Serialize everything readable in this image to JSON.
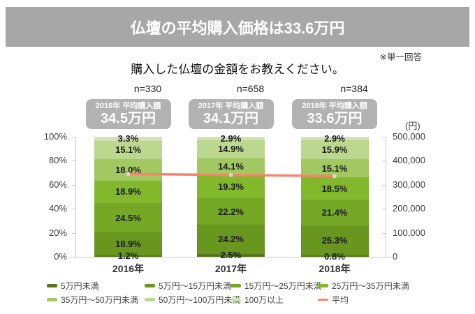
{
  "header": {
    "title": "仏壇の平均購入価格は33.6万円"
  },
  "note": "※単一回答",
  "question": "購入した仏壇の金額をお教えください。",
  "groups": [
    {
      "n_label": "n=330",
      "avg_title": "2016年 平均購入額",
      "avg_value": "34.5万円"
    },
    {
      "n_label": "n=658",
      "avg_title": "2017年 平均購入額",
      "avg_value": "34.1万円"
    },
    {
      "n_label": "n=384",
      "avg_title": "2018年 平均購入額",
      "avg_value": "33.6万円"
    }
  ],
  "chart_data": {
    "type": "bar",
    "subtype": "stacked-100pct-with-line",
    "title": "仏壇の平均購入価格は33.6万円",
    "categories": [
      "2016年",
      "2017年",
      "2018年"
    ],
    "n_values": [
      330,
      658,
      384
    ],
    "series": [
      {
        "name": "5万円未満",
        "color": "#55761a",
        "values": [
          1.2,
          2.5,
          0.8
        ]
      },
      {
        "name": "5万円〜15万円未満",
        "color": "#68961e",
        "values": [
          18.9,
          24.2,
          25.3
        ]
      },
      {
        "name": "15万円〜25万円未満",
        "color": "#74a825",
        "values": [
          24.5,
          22.2,
          21.4
        ]
      },
      {
        "name": "25万円〜35万円未満",
        "color": "#81b82c",
        "values": [
          18.9,
          19.3,
          18.5
        ]
      },
      {
        "name": "35万円〜50万円未満",
        "color": "#a2c961",
        "values": [
          18.0,
          14.1,
          15.1
        ]
      },
      {
        "name": "50万円〜100万円未満",
        "color": "#bcd78e",
        "values": [
          15.1,
          14.9,
          15.9
        ]
      },
      {
        "name": "100万以上",
        "color": "#d0e2b3",
        "values": [
          3.3,
          2.9,
          2.9
        ]
      }
    ],
    "line_series": {
      "name": "平均",
      "color": "#f5846b",
      "marker_color": "#d9d9d9",
      "values": [
        345000,
        341000,
        336000
      ],
      "value_labels": [
        "34.5万円",
        "34.1万円",
        "33.6万円"
      ]
    },
    "left_axis": {
      "ticks": [
        "0%",
        "20%",
        "40%",
        "60%",
        "80%",
        "100%"
      ],
      "min": 0,
      "max": 100
    },
    "right_axis": {
      "unit": "(円)",
      "ticks": [
        "0",
        "100,000",
        "200,000",
        "300,000",
        "400,000",
        "500,000"
      ],
      "min": 0,
      "max": 500000
    },
    "grid": false,
    "legend_position": "bottom"
  },
  "legend": [
    {
      "label": "5万円未満",
      "color": "#55761a",
      "type": "box"
    },
    {
      "label": "5万円〜15万円未満",
      "color": "#68961e",
      "type": "box"
    },
    {
      "label": "15万円〜25万円未満",
      "color": "#74a825",
      "type": "box"
    },
    {
      "label": "25万円〜35万円未満",
      "color": "#81b82c",
      "type": "box"
    },
    {
      "label": "35万円〜50万円未満",
      "color": "#a2c961",
      "type": "box"
    },
    {
      "label": "50万円〜100万円未満",
      "color": "#bcd78e",
      "type": "box"
    },
    {
      "label": "100万以上",
      "color": "#d0e2b3",
      "type": "box"
    },
    {
      "label": "平均",
      "color": "#f5846b",
      "type": "line"
    }
  ],
  "colors": {
    "banner_bg": "#a7a7a7",
    "avg_box_bg": "#b2b2b2",
    "axis": "#c6c6c6"
  }
}
